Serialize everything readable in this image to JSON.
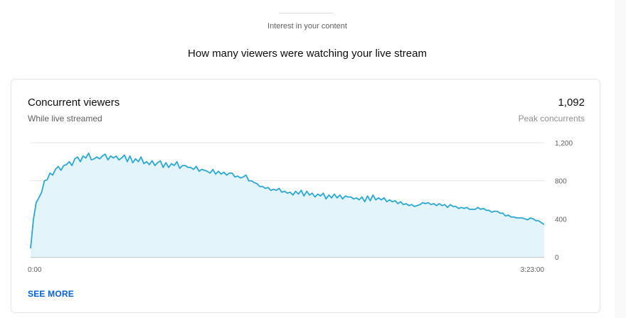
{
  "section": {
    "label": "Interest in your content",
    "heading": "How many viewers were watching your live stream"
  },
  "card": {
    "title": "Concurrent viewers",
    "subtitle": "While live streamed",
    "metric_value": "1,092",
    "metric_label": "Peak concurrents",
    "see_more": "SEE MORE"
  },
  "colors": {
    "line": "#2aa8d4",
    "fill": "#e3f4fa",
    "link": "#065fd4"
  },
  "chart_data": {
    "type": "area",
    "xlabel": "",
    "ylabel": "",
    "xlim": [
      0,
      12180
    ],
    "ylim": [
      0,
      1200
    ],
    "x_ticks": [
      {
        "value": 0,
        "label": "0:00"
      },
      {
        "value": 12180,
        "label": "3:23:00"
      }
    ],
    "y_ticks": [
      {
        "value": 0,
        "label": "0"
      },
      {
        "value": 400,
        "label": "400"
      },
      {
        "value": 800,
        "label": "800"
      },
      {
        "value": 1200,
        "label": "1,200"
      }
    ],
    "grid": true,
    "legend": "none",
    "series": [
      {
        "values": [
          90,
          390,
          570,
          620,
          680,
          800,
          810,
          880,
          860,
          920,
          950,
          910,
          960,
          970,
          1000,
          960,
          1030,
          1050,
          1000,
          1060,
          1040,
          1090,
          1020,
          1030,
          1050,
          1030,
          1060,
          1080,
          1020,
          1060,
          1040,
          1060,
          1020,
          1040,
          1070,
          1000,
          1060,
          990,
          1030,
          1000,
          1050,
          980,
          1000,
          970,
          1010,
          960,
          990,
          1010,
          940,
          990,
          940,
          980,
          960,
          1000,
          930,
          960,
          960,
          940,
          940,
          920,
          950,
          900,
          920,
          910,
          900,
          880,
          920,
          870,
          900,
          870,
          890,
          860,
          880,
          880,
          840,
          850,
          830,
          840,
          860,
          800,
          800,
          780,
          770,
          740,
          740,
          720,
          730,
          700,
          710,
          700,
          720,
          680,
          690,
          670,
          680,
          650,
          690,
          660,
          700,
          640,
          690,
          650,
          670,
          630,
          660,
          640,
          670,
          610,
          650,
          620,
          660,
          620,
          650,
          610,
          640,
          630,
          630,
          610,
          620,
          600,
          630,
          580,
          640,
          590,
          650,
          600,
          620,
          600,
          620,
          580,
          600,
          580,
          590,
          560,
          580,
          550,
          560,
          540,
          550,
          530,
          540,
          550,
          570,
          560,
          570,
          550,
          560,
          540,
          560,
          540,
          550,
          520,
          550,
          530,
          530,
          510,
          520,
          510,
          520,
          500,
          500,
          500,
          520,
          500,
          510,
          490,
          490,
          470,
          480,
          480,
          460,
          460,
          430,
          440,
          420,
          420,
          410,
          410,
          410,
          400,
          390,
          410,
          400,
          380,
          380,
          360,
          340
        ]
      }
    ]
  }
}
